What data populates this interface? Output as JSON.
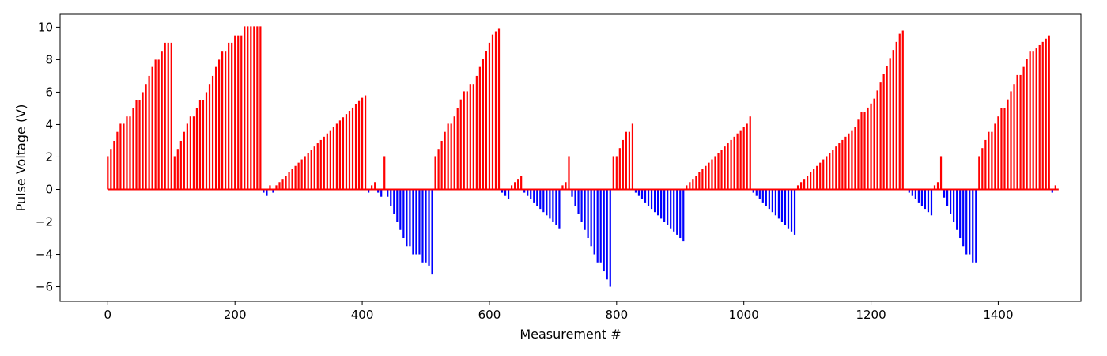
{
  "chart_data": {
    "type": "bar",
    "title": "",
    "xlabel": "Measurement #",
    "ylabel": "Pulse Voltage (V)",
    "xlim": [
      -75,
      1530
    ],
    "ylim": [
      -6.9,
      10.8
    ],
    "x_ticks": [
      0,
      200,
      400,
      600,
      800,
      1000,
      1200,
      1400
    ],
    "x_tick_labels": [
      "0",
      "200",
      "400",
      "600",
      "800",
      "1000",
      "1200",
      "1400"
    ],
    "y_ticks": [
      -6,
      -4,
      -2,
      0,
      2,
      4,
      6,
      8,
      10
    ],
    "y_tick_labels": [
      "−6",
      "−4",
      "−2",
      "0",
      "2",
      "4",
      "6",
      "8",
      "10"
    ],
    "grid": false,
    "legend": "none",
    "colors": {
      "positive": "#ff0000",
      "negative": "#0000ff",
      "baseline": "#ff0000"
    },
    "baseline": {
      "x_range": [
        0,
        1495
      ],
      "y": 0
    },
    "segments": [
      {
        "start": 0,
        "step": 5,
        "values": [
          2.05,
          2.5,
          3.0,
          3.55,
          4.05,
          4.05,
          4.5,
          4.5,
          5.0,
          5.5,
          5.5,
          6.0,
          6.5,
          7.0,
          7.55,
          8.0,
          8.0,
          8.5,
          9.05,
          9.05,
          9.05
        ]
      },
      {
        "start": 105,
        "step": 5,
        "values": [
          2.05,
          2.5,
          3.0,
          3.55,
          4.05,
          4.5,
          4.5,
          5.0,
          5.5,
          5.5,
          6.0,
          6.5,
          7.0,
          7.55,
          8.0,
          8.5,
          8.5,
          9.05,
          9.05,
          9.5,
          9.5,
          9.5,
          10.05,
          10.05,
          10.05,
          10.05,
          10.05,
          10.05
        ]
      },
      {
        "start": 245,
        "step": 5,
        "values": [
          -0.2,
          -0.4
        ]
      },
      {
        "start": 255,
        "step": 5,
        "values": [
          0.25
        ]
      },
      {
        "start": 260,
        "step": 5,
        "values": [
          -0.2
        ]
      },
      {
        "start": 265,
        "step": 5,
        "values": [
          0.25,
          0.45,
          0.65,
          0.85,
          1.05,
          1.25,
          1.45,
          1.65,
          1.85,
          2.05,
          2.25,
          2.45,
          2.65,
          2.85,
          3.05,
          3.25,
          3.45,
          3.65,
          3.85,
          4.05,
          4.25,
          4.45,
          4.65,
          4.85,
          5.05,
          5.25,
          5.45,
          5.65,
          5.8
        ]
      },
      {
        "start": 410,
        "step": 5,
        "values": [
          -0.2
        ]
      },
      {
        "start": 415,
        "step": 5,
        "values": [
          0.25,
          0.45
        ]
      },
      {
        "start": 425,
        "step": 5,
        "values": [
          -0.2,
          -0.45
        ]
      },
      {
        "start": 435,
        "step": 5,
        "values": [
          2.05
        ]
      },
      {
        "start": 440,
        "step": 5,
        "values": [
          -0.45,
          -1.0,
          -1.5,
          -2.0,
          -2.5,
          -3.0,
          -3.5,
          -3.5,
          -4.0,
          -4.0,
          -4.0,
          -4.5,
          -4.5,
          -4.7,
          -5.2
        ]
      },
      {
        "start": 515,
        "step": 5,
        "values": [
          2.05,
          2.5,
          3.0,
          3.55,
          4.05,
          4.05,
          4.5,
          5.0,
          5.55,
          6.05,
          6.05,
          6.5,
          6.5,
          7.0,
          7.55,
          8.05,
          8.55,
          9.05,
          9.55,
          9.75,
          9.9
        ]
      },
      {
        "start": 620,
        "step": 5,
        "values": [
          -0.2,
          -0.4,
          -0.6
        ]
      },
      {
        "start": 635,
        "step": 5,
        "values": [
          0.25,
          0.45,
          0.65,
          0.85
        ]
      },
      {
        "start": 655,
        "step": 5,
        "values": [
          -0.2,
          -0.4,
          -0.6,
          -0.8,
          -1.0,
          -1.2,
          -1.4,
          -1.6,
          -1.8,
          -2.0,
          -2.2,
          -2.4
        ]
      },
      {
        "start": 715,
        "step": 5,
        "values": [
          0.25,
          0.45,
          2.05
        ]
      },
      {
        "start": 730,
        "step": 5,
        "values": [
          -0.45,
          -1.0,
          -1.5,
          -2.0,
          -2.5,
          -3.0,
          -3.5,
          -4.0,
          -4.5,
          -4.5,
          -5.05,
          -5.55,
          -6.0
        ]
      },
      {
        "start": 795,
        "step": 5,
        "values": [
          2.05,
          2.05,
          2.55,
          3.05,
          3.55,
          3.55,
          4.05
        ]
      },
      {
        "start": 830,
        "step": 5,
        "values": [
          -0.2,
          -0.4,
          -0.6,
          -0.8,
          -1.0,
          -1.2,
          -1.4,
          -1.6,
          -1.8,
          -2.0,
          -2.2,
          -2.4,
          -2.6,
          -2.8,
          -3.0,
          -3.2
        ]
      },
      {
        "start": 910,
        "step": 5,
        "values": [
          0.25,
          0.45,
          0.65,
          0.85,
          1.05,
          1.25,
          1.45,
          1.65,
          1.85,
          2.05,
          2.25,
          2.45,
          2.65,
          2.85,
          3.05,
          3.25,
          3.45,
          3.65,
          3.85,
          4.05,
          4.5
        ]
      },
      {
        "start": 1015,
        "step": 5,
        "values": [
          -0.2,
          -0.4,
          -0.6,
          -0.8,
          -1.0,
          -1.2,
          -1.4,
          -1.6,
          -1.8,
          -2.0,
          -2.2,
          -2.4,
          -2.6,
          -2.8
        ]
      },
      {
        "start": 1085,
        "step": 5,
        "values": [
          0.25,
          0.45,
          0.65,
          0.85,
          1.05,
          1.25,
          1.45,
          1.65,
          1.85,
          2.05,
          2.25,
          2.45,
          2.65,
          2.85,
          3.05,
          3.25,
          3.45,
          3.65,
          3.85,
          4.3,
          4.8,
          4.8,
          5.05,
          5.3,
          5.6,
          6.1,
          6.6,
          7.1,
          7.6,
          8.1,
          8.6,
          9.1,
          9.6,
          9.8
        ]
      },
      {
        "start": 1260,
        "step": 5,
        "values": [
          -0.2,
          -0.4,
          -0.6,
          -0.8,
          -1.0,
          -1.2,
          -1.4,
          -1.6
        ]
      },
      {
        "start": 1300,
        "step": 5,
        "values": [
          0.25,
          0.45,
          2.05
        ]
      },
      {
        "start": 1315,
        "step": 5,
        "values": [
          -0.5,
          -1.0,
          -1.5,
          -2.0,
          -2.5,
          -3.0,
          -3.5,
          -4.0,
          -4.0,
          -4.5,
          -4.5
        ]
      },
      {
        "start": 1370,
        "step": 5,
        "values": [
          2.05,
          2.55,
          3.05,
          3.55,
          3.55,
          4.05,
          4.5,
          5.0,
          5.0,
          5.55,
          6.05,
          6.5,
          7.05,
          7.05,
          7.55,
          8.05,
          8.5,
          8.5,
          8.7,
          8.9,
          9.1,
          9.3,
          9.5
        ]
      },
      {
        "start": 1485,
        "step": 5,
        "values": [
          -0.2
        ]
      },
      {
        "start": 1490,
        "step": 5,
        "values": [
          0.25
        ]
      }
    ]
  }
}
